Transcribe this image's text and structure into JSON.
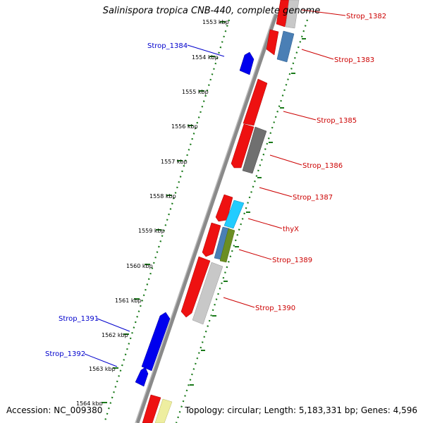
{
  "title": "Salinispora tropica CNB-440, complete genome",
  "accession_text": "Accession: NC_009380",
  "summary_text": "Topology: circular; Length: 5,183,331 bp; Genes: 4,596",
  "colors": {
    "forward_label": "#cc0000",
    "reverse_label": "#0000cc",
    "tick": "#1a7a1a",
    "backbone": "#888888"
  },
  "ticks": [
    {
      "label": "1553 kbp"
    },
    {
      "label": "1554 kbp"
    },
    {
      "label": "1555 kbp"
    },
    {
      "label": "1556 kbp"
    },
    {
      "label": "1557 kbp"
    },
    {
      "label": "1558 kbp"
    },
    {
      "label": "1559 kbp"
    },
    {
      "label": "1560 kbp"
    },
    {
      "label": "1561 kbp"
    },
    {
      "label": "1562 kbp"
    },
    {
      "label": "1563 kbp"
    },
    {
      "label": "1564 kbp"
    }
  ],
  "gene_labels": [
    {
      "name": "Strop_1382",
      "strand": "forward"
    },
    {
      "name": "Strop_1383",
      "strand": "forward"
    },
    {
      "name": "Strop_1384",
      "strand": "reverse"
    },
    {
      "name": "Strop_1385",
      "strand": "forward"
    },
    {
      "name": "Strop_1386",
      "strand": "forward"
    },
    {
      "name": "Strop_1387",
      "strand": "forward"
    },
    {
      "name": "thyX",
      "strand": "forward"
    },
    {
      "name": "Strop_1389",
      "strand": "forward"
    },
    {
      "name": "Strop_1390",
      "strand": "forward"
    },
    {
      "name": "Strop_1391",
      "strand": "reverse"
    },
    {
      "name": "Strop_1392",
      "strand": "reverse"
    }
  ]
}
